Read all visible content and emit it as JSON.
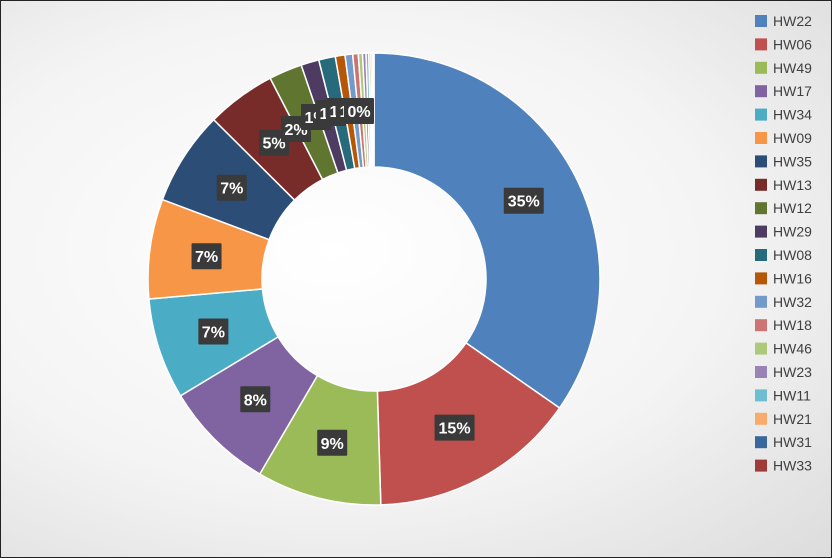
{
  "chart_data": {
    "type": "pie",
    "variant": "donut",
    "title": "",
    "legend_position": "right",
    "series": [
      {
        "name": "HW22",
        "value": 35,
        "label": "35%",
        "color": "#4F81BD"
      },
      {
        "name": "HW06",
        "value": 15,
        "label": "15%",
        "color": "#C0504D"
      },
      {
        "name": "HW49",
        "value": 9,
        "label": "9%",
        "color": "#9BBB59"
      },
      {
        "name": "HW17",
        "value": 8,
        "label": "8%",
        "color": "#8064A2"
      },
      {
        "name": "HW34",
        "value": 7.3,
        "label": "7%",
        "color": "#4BACC6"
      },
      {
        "name": "HW09",
        "value": 7.2,
        "label": "7%",
        "color": "#F79646"
      },
      {
        "name": "HW35",
        "value": 6.8,
        "label": "7%",
        "color": "#2C4D75"
      },
      {
        "name": "HW13",
        "value": 5,
        "label": "5%",
        "color": "#772C2A"
      },
      {
        "name": "HW12",
        "value": 2.4,
        "label": "2%",
        "color": "#5F7530"
      },
      {
        "name": "HW29",
        "value": 1.3,
        "label": "1%",
        "color": "#4D3B62"
      },
      {
        "name": "HW08",
        "value": 1.2,
        "label": "1%",
        "color": "#276A7C"
      },
      {
        "name": "HW16",
        "value": 0.7,
        "label": "1%",
        "color": "#B65708"
      },
      {
        "name": "HW32",
        "value": 0.55,
        "label": "1%",
        "color": "#729ACA"
      },
      {
        "name": "HW18",
        "value": 0.4,
        "label": "0%",
        "color": "#CD7371"
      },
      {
        "name": "HW46",
        "value": 0.3,
        "label": "0%",
        "color": "#AFC97A"
      },
      {
        "name": "HW23",
        "value": 0.25,
        "label": "0%",
        "color": "#9983B5"
      },
      {
        "name": "HW11",
        "value": 0.2,
        "label": "0%",
        "color": "#6FBDD1"
      },
      {
        "name": "HW21",
        "value": 0.15,
        "label": "0%",
        "color": "#F9AB6B"
      },
      {
        "name": "HW31",
        "value": 0.12,
        "label": "0%",
        "color": "#3A679C"
      },
      {
        "name": "HW33",
        "value": 0.1,
        "label": "0%",
        "color": "#9F3B38"
      }
    ]
  }
}
